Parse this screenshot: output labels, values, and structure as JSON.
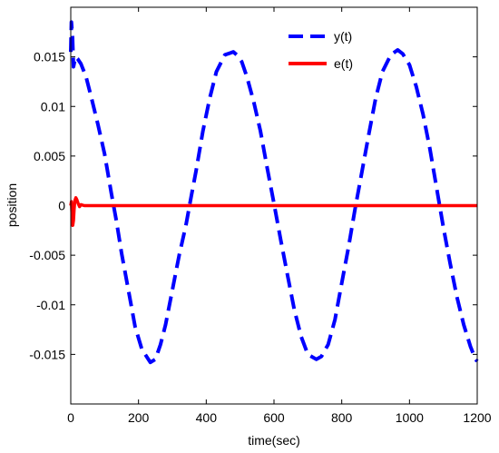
{
  "chart_data": {
    "type": "line",
    "xlabel": "time(sec)",
    "ylabel": "position",
    "xlim": [
      0,
      1200
    ],
    "ylim": [
      -0.02,
      0.02
    ],
    "grid": false,
    "legend_position": "top-right",
    "x_ticks": [
      {
        "value": 0,
        "label": "0"
      },
      {
        "value": 200,
        "label": "200"
      },
      {
        "value": 400,
        "label": "400"
      },
      {
        "value": 600,
        "label": "600"
      },
      {
        "value": 800,
        "label": "800"
      },
      {
        "value": 1000,
        "label": "1000"
      },
      {
        "value": 1200,
        "label": "1200"
      }
    ],
    "y_ticks": [
      {
        "value": 0.015,
        "label": "0.015"
      },
      {
        "value": 0.01,
        "label": "0.01"
      },
      {
        "value": 0.005,
        "label": "0.005"
      },
      {
        "value": 0,
        "label": "0"
      },
      {
        "value": -0.005,
        "label": "-0.005"
      },
      {
        "value": -0.01,
        "label": "-0.01"
      },
      {
        "value": -0.015,
        "label": "-0.015"
      }
    ],
    "series": [
      {
        "name": "y(t)",
        "color": "#0000ff",
        "dash": "dashed",
        "x": [
          0,
          2,
          5,
          8,
          11,
          14,
          20,
          30,
          45,
          60,
          80,
          100,
          120,
          135,
          150,
          170,
          190,
          210,
          235,
          250,
          265,
          280,
          300,
          320,
          340,
          355,
          370,
          390,
          410,
          430,
          455,
          480,
          490,
          505,
          520,
          540,
          560,
          580,
          600,
          620,
          640,
          660,
          680,
          700,
          725,
          740,
          760,
          780,
          800,
          820,
          840,
          860,
          880,
          900,
          920,
          945,
          965,
          980,
          1000,
          1020,
          1040,
          1060,
          1080,
          1100,
          1120,
          1140,
          1160,
          1180,
          1195,
          1200
        ],
        "y": [
          0.0155,
          0.0185,
          0.017,
          0.014,
          0.0145,
          0.015,
          0.0148,
          0.0143,
          0.013,
          0.011,
          0.0082,
          0.0052,
          0.0012,
          -0.0016,
          -0.0048,
          -0.0085,
          -0.0122,
          -0.0145,
          -0.0158,
          -0.0155,
          -0.014,
          -0.012,
          -0.0085,
          -0.005,
          -0.002,
          0.0008,
          0.0035,
          0.0075,
          0.0108,
          0.0135,
          0.0152,
          0.0155,
          0.0152,
          0.0145,
          0.013,
          0.0105,
          0.0075,
          0.0038,
          0.0002,
          -0.0035,
          -0.007,
          -0.0105,
          -0.0132,
          -0.015,
          -0.0155,
          -0.0152,
          -0.014,
          -0.0115,
          -0.0078,
          -0.0042,
          -0.0002,
          0.0035,
          0.0072,
          0.0108,
          0.0135,
          0.0152,
          0.0157,
          0.0153,
          0.0142,
          0.012,
          0.0092,
          0.0058,
          0.0018,
          -0.0022,
          -0.0058,
          -0.0092,
          -0.012,
          -0.0142,
          -0.0155,
          -0.0157
        ]
      },
      {
        "name": "e(t)",
        "color": "#ff0000",
        "dash": "solid",
        "x": [
          0,
          2,
          4,
          6,
          8,
          10,
          12,
          15,
          18,
          22,
          26,
          30,
          40,
          60,
          100,
          200,
          400,
          600,
          800,
          1000,
          1200
        ],
        "y": [
          0,
          0.0004,
          -0.0012,
          -0.002,
          -0.0015,
          -0.0004,
          0.0005,
          0.0008,
          0.0006,
          0.0002,
          -0.0001,
          0.0001,
          0.0,
          0.0,
          0.0,
          0.0,
          0.0,
          0.0,
          0.0,
          0.0,
          0.0
        ]
      }
    ]
  }
}
